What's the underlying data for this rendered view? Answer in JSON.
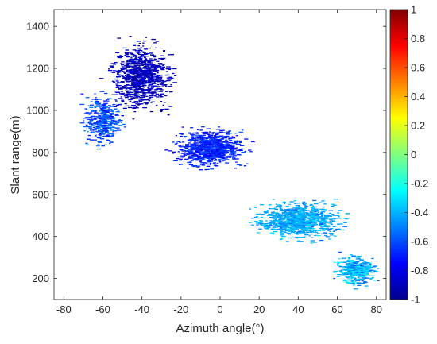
{
  "chart_data": {
    "type": "heatmap",
    "title": "",
    "xlabel": "Azimuth angle(°)",
    "ylabel": "Slant range(m)",
    "xlim": [
      -85,
      85
    ],
    "ylim": [
      100,
      1480
    ],
    "x_ticks": [
      -80,
      -60,
      -40,
      -20,
      0,
      20,
      40,
      60,
      80
    ],
    "y_ticks": [
      200,
      400,
      600,
      800,
      1000,
      1200,
      1400
    ],
    "x_tick_labels": [
      "-80",
      "-60",
      "-40",
      "-20",
      "0",
      "20",
      "40",
      "60",
      "80"
    ],
    "y_tick_labels": [
      "200",
      "400",
      "600",
      "800",
      "1000",
      "1200",
      "1400"
    ],
    "colorbar": {
      "colormap": "jet",
      "range": [
        -1,
        1
      ],
      "ticks": [
        -1,
        -0.8,
        -0.6,
        -0.4,
        -0.2,
        0,
        0.2,
        0.4,
        0.6,
        0.8,
        1
      ],
      "tick_labels": [
        "-1",
        "-0.8",
        "-0.6",
        "-0.4",
        "-0.2",
        "0",
        "0.2",
        "0.4",
        "0.6",
        "0.8",
        "1"
      ]
    },
    "regions": [
      {
        "name": "upper-lobe",
        "center": [
          -40,
          1160
        ],
        "spread": [
          16,
          160
        ],
        "value_mean": -0.88,
        "value_sd": 0.09,
        "density": 900
      },
      {
        "name": "upper-lobe-left",
        "center": [
          -60,
          950
        ],
        "spread": [
          10,
          120
        ],
        "value_mean": -0.6,
        "value_sd": 0.18,
        "density": 380
      },
      {
        "name": "central-band",
        "center": [
          -5,
          820
        ],
        "spread": [
          18,
          90
        ],
        "value_mean": -0.68,
        "value_sd": 0.14,
        "density": 850
      },
      {
        "name": "lower-band",
        "center": [
          40,
          480
        ],
        "spread": [
          22,
          90
        ],
        "value_mean": -0.42,
        "value_sd": 0.14,
        "density": 950
      },
      {
        "name": "tail",
        "center": [
          70,
          240
        ],
        "spread": [
          10,
          70
        ],
        "value_mean": -0.4,
        "value_sd": 0.2,
        "density": 420
      }
    ],
    "grid": false,
    "legend": "none"
  }
}
